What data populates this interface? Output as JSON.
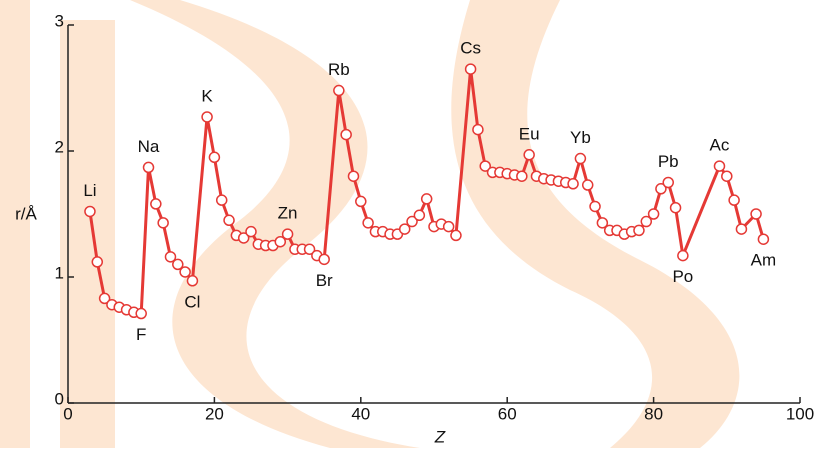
{
  "chart_data": {
    "type": "line",
    "xlabel": "Z",
    "ylabel": "r/Å",
    "x": [
      3,
      4,
      5,
      6,
      7,
      8,
      9,
      10,
      11,
      12,
      13,
      14,
      15,
      16,
      17,
      19,
      20,
      21,
      22,
      23,
      24,
      25,
      26,
      27,
      28,
      29,
      30,
      31,
      32,
      33,
      34,
      35,
      37,
      38,
      39,
      40,
      41,
      42,
      43,
      44,
      45,
      46,
      47,
      48,
      49,
      50,
      51,
      52,
      53,
      55,
      56,
      57,
      58,
      59,
      60,
      61,
      62,
      63,
      64,
      65,
      66,
      67,
      68,
      69,
      70,
      71,
      72,
      73,
      74,
      75,
      76,
      77,
      78,
      79,
      80,
      81,
      82,
      83,
      84,
      89,
      90,
      91,
      92,
      94,
      95
    ],
    "series": [
      {
        "color": "#e53935",
        "values": [
          1.52,
          1.12,
          0.83,
          0.78,
          0.76,
          0.74,
          0.72,
          0.71,
          1.87,
          1.58,
          1.43,
          1.16,
          1.1,
          1.04,
          0.97,
          2.27,
          1.95,
          1.61,
          1.45,
          1.33,
          1.31,
          1.36,
          1.26,
          1.25,
          1.25,
          1.28,
          1.34,
          1.22,
          1.22,
          1.22,
          1.17,
          1.14,
          2.48,
          2.13,
          1.8,
          1.6,
          1.43,
          1.36,
          1.36,
          1.34,
          1.34,
          1.38,
          1.44,
          1.49,
          1.62,
          1.4,
          1.42,
          1.4,
          1.33,
          2.65,
          2.17,
          1.88,
          1.83,
          1.83,
          1.82,
          1.81,
          1.8,
          1.97,
          1.8,
          1.78,
          1.77,
          1.76,
          1.75,
          1.74,
          1.94,
          1.73,
          1.56,
          1.43,
          1.37,
          1.37,
          1.34,
          1.36,
          1.37,
          1.44,
          1.5,
          1.7,
          1.75,
          1.55,
          1.17,
          1.88,
          1.8,
          1.61,
          1.38,
          1.5,
          1.3
        ]
      }
    ],
    "annotations": [
      {
        "text": "Li",
        "x": 3
      },
      {
        "text": "F",
        "x": 10
      },
      {
        "text": "Na",
        "x": 11
      },
      {
        "text": "Cl",
        "x": 17
      },
      {
        "text": "K",
        "x": 19
      },
      {
        "text": "Zn",
        "x": 30
      },
      {
        "text": "Br",
        "x": 35
      },
      {
        "text": "Rb",
        "x": 37
      },
      {
        "text": "Cs",
        "x": 55
      },
      {
        "text": "Eu",
        "x": 63
      },
      {
        "text": "Yb",
        "x": 70
      },
      {
        "text": "Pb",
        "x": 82
      },
      {
        "text": "Po",
        "x": 84
      },
      {
        "text": "Ac",
        "x": 89
      },
      {
        "text": "Am",
        "x": 95
      }
    ],
    "xlim": [
      0,
      100
    ],
    "xticks": [
      0,
      20,
      40,
      60,
      80,
      100
    ],
    "ylim": [
      0,
      3
    ],
    "yticks": [
      0,
      1,
      2,
      3
    ],
    "grid": false
  }
}
